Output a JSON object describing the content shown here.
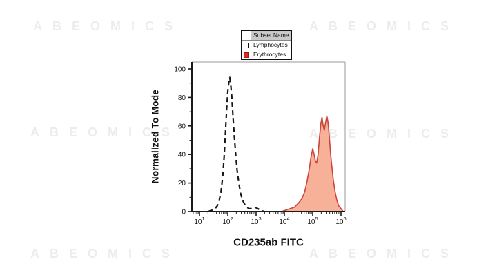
{
  "watermark": {
    "text": "ABEOMICS"
  },
  "legend": {
    "header": "Subset Name",
    "rows": [
      {
        "label": "Lymphocytes",
        "swatch": "open",
        "color": "#ffffff",
        "border": "#111111"
      },
      {
        "label": "Erythrocytes",
        "swatch": "filled",
        "color": "#e02a23",
        "border": "#9a1b14"
      }
    ]
  },
  "chart_data": {
    "type": "area",
    "subtype": "flow-cytometry-histogram-overlay",
    "title": "",
    "xlabel": "CD235ab FITC",
    "ylabel": "Normalized To Mode",
    "x_scale": "log10",
    "xlim_log10": [
      0.73,
      6.15
    ],
    "ylim": [
      0,
      100
    ],
    "y_ticks": [
      0,
      20,
      40,
      60,
      80,
      100
    ],
    "y_minor_step": 10,
    "x_ticks_decades": [
      1,
      2,
      3,
      4,
      5,
      6
    ],
    "x_tick_labels": [
      "10^1",
      "10^2",
      "10^3",
      "10^4",
      "10^5",
      "10^6"
    ],
    "grid": false,
    "legend_position": "top-center",
    "colors": {
      "axis": "#1a1a1a",
      "frame": "#9a9a9a",
      "watermark": "rgba(110,110,100,0.13)"
    },
    "series": [
      {
        "name": "Lymphocytes",
        "style": "dashed",
        "color": "#161616",
        "peak": {
          "x_log10": 2.07,
          "y": 94
        },
        "points": [
          [
            1.3,
            0
          ],
          [
            1.45,
            1
          ],
          [
            1.55,
            2
          ],
          [
            1.63,
            4
          ],
          [
            1.7,
            8
          ],
          [
            1.76,
            14
          ],
          [
            1.82,
            24
          ],
          [
            1.87,
            38
          ],
          [
            1.92,
            56
          ],
          [
            1.96,
            72
          ],
          [
            2.0,
            84
          ],
          [
            2.04,
            91
          ],
          [
            2.07,
            94
          ],
          [
            2.1,
            90
          ],
          [
            2.14,
            81
          ],
          [
            2.18,
            68
          ],
          [
            2.23,
            53
          ],
          [
            2.28,
            40
          ],
          [
            2.33,
            29
          ],
          [
            2.39,
            20
          ],
          [
            2.45,
            13
          ],
          [
            2.52,
            8
          ],
          [
            2.6,
            5
          ],
          [
            2.68,
            3
          ],
          [
            2.76,
            2
          ],
          [
            2.86,
            2
          ],
          [
            2.96,
            3
          ],
          [
            3.06,
            2
          ],
          [
            3.16,
            1
          ],
          [
            3.28,
            0
          ]
        ]
      },
      {
        "name": "Erythrocytes",
        "style": "filled",
        "color": "#c9463a",
        "fill": "#f6a88e",
        "peaks": [
          {
            "x_log10": 5.0,
            "y": 44
          },
          {
            "x_log10": 5.33,
            "y": 66
          },
          {
            "x_log10": 5.5,
            "y": 67
          }
        ],
        "points": [
          [
            3.9,
            0
          ],
          [
            4.05,
            1
          ],
          [
            4.2,
            2
          ],
          [
            4.35,
            3
          ],
          [
            4.5,
            6
          ],
          [
            4.62,
            9
          ],
          [
            4.72,
            14
          ],
          [
            4.8,
            21
          ],
          [
            4.88,
            30
          ],
          [
            4.94,
            38
          ],
          [
            5.0,
            44
          ],
          [
            5.04,
            41
          ],
          [
            5.09,
            36
          ],
          [
            5.14,
            34
          ],
          [
            5.19,
            40
          ],
          [
            5.24,
            52
          ],
          [
            5.29,
            62
          ],
          [
            5.33,
            66
          ],
          [
            5.37,
            60
          ],
          [
            5.41,
            57
          ],
          [
            5.46,
            63
          ],
          [
            5.5,
            67
          ],
          [
            5.54,
            63
          ],
          [
            5.59,
            52
          ],
          [
            5.63,
            41
          ],
          [
            5.68,
            31
          ],
          [
            5.73,
            22
          ],
          [
            5.79,
            14
          ],
          [
            5.85,
            8
          ],
          [
            5.92,
            4
          ],
          [
            6.0,
            2
          ],
          [
            6.08,
            0
          ]
        ]
      }
    ]
  }
}
